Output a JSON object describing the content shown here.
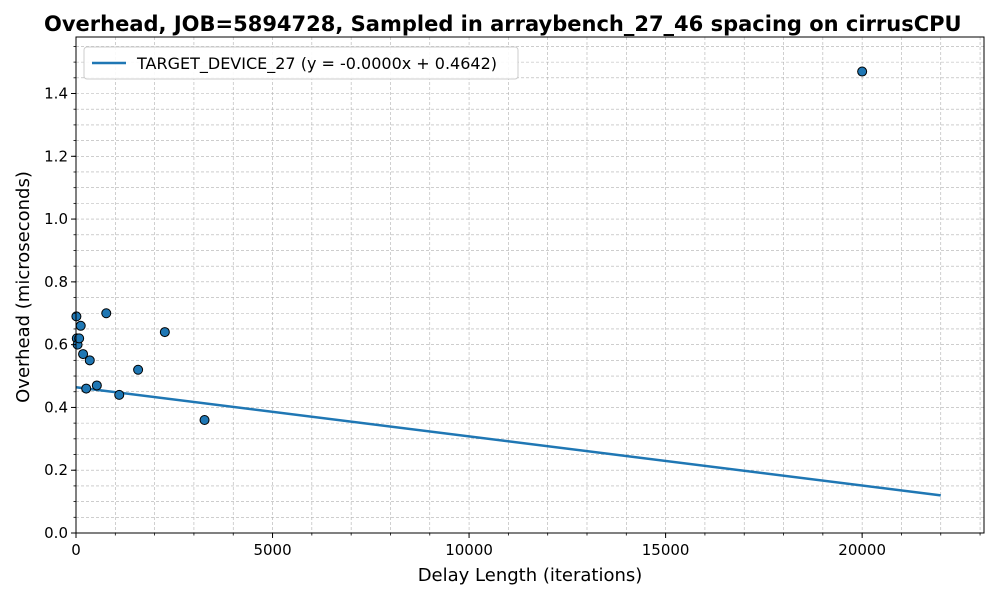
{
  "chart_data": {
    "type": "scatter",
    "title": "Overhead, JOB=5894728, Sampled in arraybench_27_46 spacing on cirrusCPU",
    "xlabel": "Delay Length (iterations)",
    "ylabel": "Overhead (microseconds)",
    "xlim": [
      0,
      23100
    ],
    "ylim": [
      0,
      1.58
    ],
    "grid": true,
    "x_ticks": [
      0,
      5000,
      10000,
      15000,
      20000
    ],
    "x_tick_labels": [
      "0",
      "5000",
      "10000",
      "15000",
      "20000"
    ],
    "y_ticks": [
      0.0,
      0.2,
      0.4,
      0.6,
      0.8,
      1.0,
      1.2,
      1.4
    ],
    "y_tick_labels": [
      "0.0",
      "0.2",
      "0.4",
      "0.6",
      "0.8",
      "1.0",
      "1.2",
      "1.4"
    ],
    "legend": {
      "position": "top-left",
      "entries": [
        "TARGET_DEVICE_27 (y = -0.0000x + 0.4642)"
      ]
    },
    "series": [
      {
        "name": "TARGET_DEVICE_27",
        "kind": "points",
        "color": "#1f77b4",
        "points": [
          {
            "x": 10,
            "y": 0.69
          },
          {
            "x": 20,
            "y": 0.62
          },
          {
            "x": 40,
            "y": 0.6
          },
          {
            "x": 80,
            "y": 0.62
          },
          {
            "x": 120,
            "y": 0.66
          },
          {
            "x": 180,
            "y": 0.57
          },
          {
            "x": 260,
            "y": 0.46
          },
          {
            "x": 350,
            "y": 0.55
          },
          {
            "x": 530,
            "y": 0.47
          },
          {
            "x": 770,
            "y": 0.7
          },
          {
            "x": 1100,
            "y": 0.44
          },
          {
            "x": 1580,
            "y": 0.52
          },
          {
            "x": 2260,
            "y": 0.64
          },
          {
            "x": 3270,
            "y": 0.36
          },
          {
            "x": 20000,
            "y": 1.47
          }
        ]
      },
      {
        "name": "TARGET_DEVICE_27 (y = -0.0000x + 0.4642)",
        "kind": "fit_line",
        "color": "#1f77b4",
        "x": [
          0,
          22000
        ],
        "y": [
          0.4642,
          0.12
        ]
      }
    ]
  }
}
